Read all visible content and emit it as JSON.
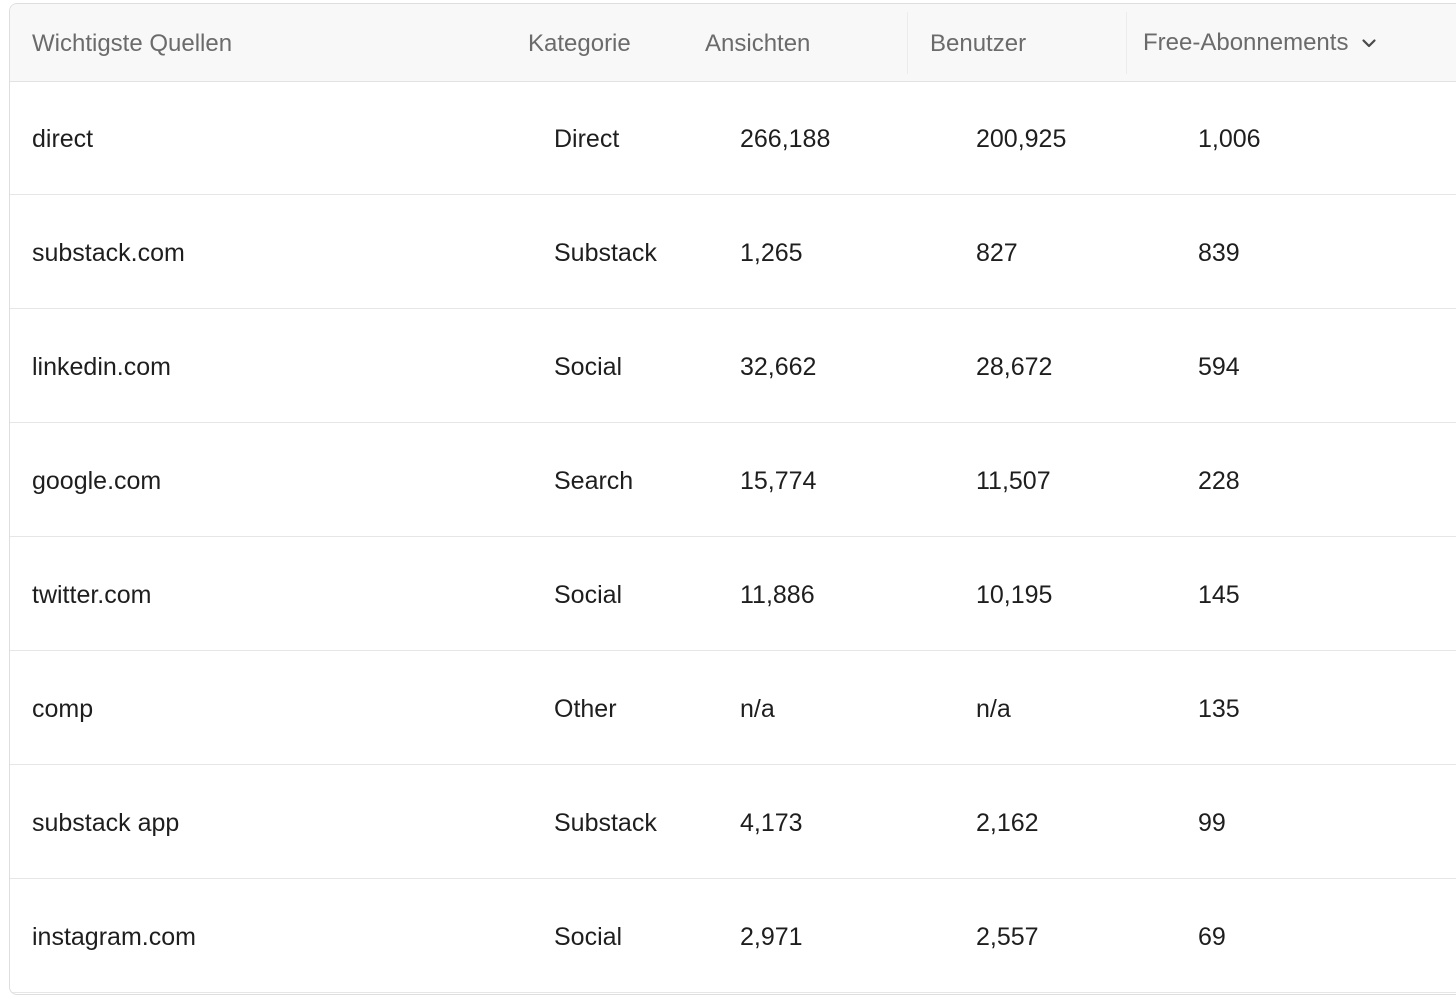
{
  "table": {
    "headers": {
      "source": "Wichtigste Quellen",
      "category": "Kategorie",
      "views": "Ansichten",
      "users": "Benutzer",
      "free_subs": "Free-Abonnements"
    },
    "sort": {
      "column": "free_subs",
      "icon": "chevron-down-icon"
    },
    "rows": [
      {
        "source": "direct",
        "category": "Direct",
        "views": "266,188",
        "users": "200,925",
        "free_subs": "1,006"
      },
      {
        "source": "substack.com",
        "category": "Substack",
        "views": "1,265",
        "users": "827",
        "free_subs": "839"
      },
      {
        "source": "linkedin.com",
        "category": "Social",
        "views": "32,662",
        "users": "28,672",
        "free_subs": "594"
      },
      {
        "source": "google.com",
        "category": "Search",
        "views": "15,774",
        "users": "11,507",
        "free_subs": "228"
      },
      {
        "source": "twitter.com",
        "category": "Social",
        "views": "11,886",
        "users": "10,195",
        "free_subs": "145"
      },
      {
        "source": "comp",
        "category": "Other",
        "views": "n/a",
        "users": "n/a",
        "free_subs": "135"
      },
      {
        "source": "substack app",
        "category": "Substack",
        "views": "4,173",
        "users": "2,162",
        "free_subs": "99"
      },
      {
        "source": "instagram.com",
        "category": "Social",
        "views": "2,971",
        "users": "2,557",
        "free_subs": "69"
      }
    ]
  }
}
